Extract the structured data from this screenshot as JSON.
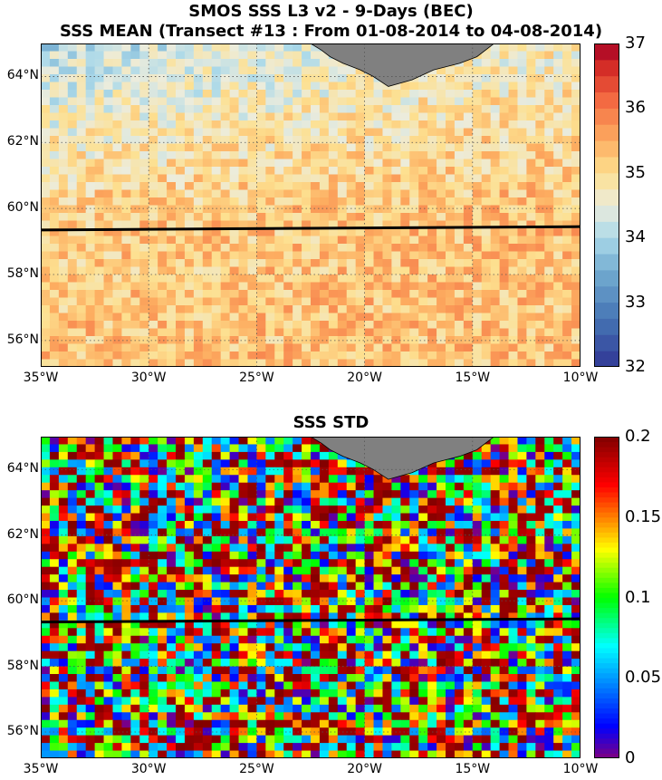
{
  "titles": {
    "line1": "SMOS SSS L3 v2 - 9-Days (BEC)",
    "line2": "SSS MEAN (Transect #13 : From 01-08-2014 to 04-08-2014)",
    "line3": "SSS STD"
  },
  "chart_data": [
    {
      "type": "heatmap",
      "title": "SSS MEAN (Transect #13 : From 01-08-2014 to 04-08-2014)",
      "x_range": [
        -35,
        -10
      ],
      "y_range": [
        55.2,
        65.0
      ],
      "x_ticks": [
        "35°W",
        "30°W",
        "25°W",
        "20°W",
        "15°W",
        "10°W"
      ],
      "x_tick_values": [
        -35,
        -30,
        -25,
        -20,
        -15,
        -10
      ],
      "y_ticks": [
        "56°N",
        "58°N",
        "60°N",
        "62°N",
        "64°N"
      ],
      "y_tick_values": [
        56,
        58,
        60,
        62,
        64
      ],
      "colorbar": {
        "min": 32,
        "max": 37,
        "ticks": [
          "32",
          "33",
          "34",
          "35",
          "36",
          "37"
        ],
        "colormap": "blue-white-red"
      },
      "grid": true,
      "transect": {
        "lon": [
          -35,
          -10
        ],
        "lat": [
          59.35,
          59.45
        ],
        "color": "#000000"
      },
      "land_color": "#808080"
    },
    {
      "type": "heatmap",
      "title": "SSS STD",
      "x_range": [
        -35,
        -10
      ],
      "y_range": [
        55.2,
        65.0
      ],
      "x_ticks": [
        "35°W",
        "30°W",
        "25°W",
        "20°W",
        "15°W",
        "10°W"
      ],
      "x_tick_values": [
        -35,
        -30,
        -25,
        -20,
        -15,
        -10
      ],
      "y_ticks": [
        "56°N",
        "58°N",
        "60°N",
        "62°N",
        "64°N"
      ],
      "y_tick_values": [
        56,
        58,
        60,
        62,
        64
      ],
      "colorbar": {
        "min": 0,
        "max": 0.2,
        "ticks": [
          "0",
          "0.05",
          "0.1",
          "0.15",
          "0.2"
        ],
        "colormap": "jet"
      },
      "grid": true,
      "transect": {
        "lon": [
          -35,
          -10
        ],
        "lat": [
          59.35,
          59.45
        ],
        "color": "#000000"
      },
      "land_color": "#808080"
    }
  ]
}
